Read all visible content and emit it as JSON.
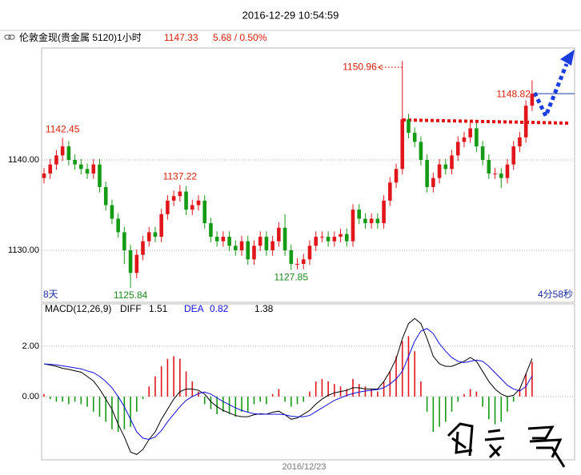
{
  "timestamp": "2016-12-29 10:54:59",
  "header": {
    "title": "伦敦金现(贵金属 5120)1小时",
    "last": 1147.33,
    "change": "5.68 / 0.50%"
  },
  "chart_data": [
    {
      "type": "candlestick",
      "open": [
        1138,
        1138.5,
        1139.5,
        1140.5,
        1141.5,
        1140,
        1139.5,
        1139,
        1138.5,
        1139.5,
        1137,
        1135,
        1133.5,
        1132,
        1130,
        1127.5,
        1129.5,
        1131,
        1132,
        1131.5,
        1134,
        1135.5,
        1136,
        1136.5,
        1134.5,
        1135,
        1135.5,
        1133,
        1131.5,
        1131,
        1131.5,
        1130.5,
        1130,
        1131,
        1129,
        1130.5,
        1131.5,
        1130,
        1131,
        1132.5,
        1130,
        1128.5,
        1128.5,
        1129,
        1130.5,
        1131.5,
        1131.5,
        1131,
        1131.5,
        1131.8,
        1131,
        1134.5,
        1133.5,
        1133,
        1133.5,
        1133,
        1135.5,
        1137.5,
        1139,
        1144.5,
        1143,
        1142,
        1140,
        1137,
        1138,
        1139.5,
        1139,
        1140.5,
        1142,
        1142.5,
        1143.5,
        1141.5,
        1140,
        1138.5,
        1138.5,
        1138,
        1139.5,
        1141.5,
        1142.5,
        1146
      ],
      "high": [
        1139.1,
        1140.1,
        1141.1,
        1142.45,
        1142.1,
        1140.6,
        1140.1,
        1139.6,
        1140.1,
        1140.1,
        1137.6,
        1135.6,
        1134.1,
        1132.6,
        1130.6,
        1130.1,
        1131.6,
        1132.6,
        1132.6,
        1134.6,
        1136.1,
        1136.6,
        1137.22,
        1137.1,
        1135.6,
        1136.1,
        1136.1,
        1133.6,
        1132.1,
        1132.1,
        1132.1,
        1131.1,
        1131.6,
        1131.6,
        1131.1,
        1132.1,
        1132.1,
        1131.6,
        1133.1,
        1134.0,
        1130.6,
        1129.1,
        1129.6,
        1131.1,
        1132.1,
        1132.1,
        1132.1,
        1132.1,
        1132.4,
        1132.4,
        1135.1,
        1135.1,
        1134.1,
        1134.1,
        1134.1,
        1136.1,
        1138.1,
        1139.6,
        1150.96,
        1145.1,
        1143.6,
        1142.6,
        1140.6,
        1138.6,
        1140.1,
        1140.1,
        1141.1,
        1142.6,
        1143.1,
        1144.1,
        1144.1,
        1142.1,
        1140.6,
        1139.1,
        1139.1,
        1140.1,
        1142.1,
        1143.1,
        1146.6,
        1148.82
      ],
      "low": [
        1137.4,
        1137.9,
        1138.9,
        1139.9,
        1139.4,
        1138.9,
        1138.4,
        1137.9,
        1137.9,
        1136.4,
        1134.4,
        1132.9,
        1131.4,
        1128.5,
        1125.84,
        1126.9,
        1128.9,
        1130.4,
        1130.9,
        1130.9,
        1133.4,
        1134.9,
        1135.4,
        1133.9,
        1133.9,
        1134.4,
        1132.4,
        1130.9,
        1130.4,
        1130.4,
        1129.9,
        1129.4,
        1129.4,
        1128.4,
        1128.4,
        1129.9,
        1129.4,
        1129.4,
        1130.4,
        1129.4,
        1127.85,
        1127.9,
        1127.9,
        1128.4,
        1129.9,
        1130.9,
        1130.4,
        1130.4,
        1130.9,
        1130.4,
        1130.4,
        1132.9,
        1132.4,
        1132.4,
        1132.4,
        1132.4,
        1134.9,
        1136.9,
        1138.4,
        1142.4,
        1141.4,
        1139.4,
        1136.4,
        1136.4,
        1137.4,
        1138.4,
        1138.4,
        1139.9,
        1141.4,
        1141.9,
        1140.9,
        1139.4,
        1137.9,
        1137.9,
        1136.9,
        1137.4,
        1138.9,
        1140.9,
        1141.9,
        1145.4
      ],
      "close": [
        1138.5,
        1139.5,
        1140.5,
        1141.5,
        1140,
        1139.5,
        1139,
        1138.5,
        1139.5,
        1137,
        1135,
        1133.5,
        1132,
        1130,
        1127.5,
        1129.5,
        1131,
        1132,
        1131.5,
        1134,
        1135.5,
        1136,
        1136.5,
        1134.5,
        1135,
        1135.5,
        1133,
        1131.5,
        1131,
        1131.5,
        1130.5,
        1130,
        1131,
        1129,
        1130.5,
        1131.5,
        1130,
        1131,
        1132.5,
        1130,
        1128.5,
        1128.5,
        1129,
        1130.5,
        1131.5,
        1131.5,
        1131,
        1131.5,
        1131.8,
        1131,
        1134.5,
        1133.5,
        1133,
        1133.5,
        1133,
        1135.5,
        1137.5,
        1139,
        1144.5,
        1143,
        1142,
        1140,
        1137,
        1138,
        1139.5,
        1139,
        1140.5,
        1142,
        1142.5,
        1143.5,
        1141.5,
        1140,
        1138.5,
        1138.5,
        1138,
        1139.5,
        1141.5,
        1142.5,
        1146,
        1147.33
      ],
      "up_color": "#e0161b",
      "down_color": "#159a15",
      "ylim": [
        1124.25,
        1152.39
      ],
      "yticks": [
        {
          "value": 1130,
          "label": "1130.00"
        },
        {
          "value": 1140,
          "label": "1140.00"
        }
      ],
      "grid": true,
      "span_label": "8天",
      "countdown": "4分58秒"
    },
    {
      "type": "macd",
      "title": "MACD(12,26,9)",
      "series": [
        {
          "name": "DIFF",
          "color": "#000000",
          "values": [
            1.3,
            1.25,
            1.2,
            1.12,
            1.08,
            1.02,
            0.97,
            0.8,
            0.62,
            0.3,
            -0.1,
            -0.5,
            -1.1,
            -1.6,
            -2.2,
            -2.3,
            -2.1,
            -1.7,
            -1.4,
            -0.9,
            -0.5,
            -0.1,
            0.2,
            0.3,
            0.3,
            0.25,
            0.1,
            -0.2,
            -0.4,
            -0.55,
            -0.65,
            -0.75,
            -0.8,
            -0.8,
            -0.72,
            -0.68,
            -0.7,
            -0.62,
            -0.58,
            -0.72,
            -0.9,
            -0.85,
            -0.7,
            -0.55,
            -0.3,
            -0.1,
            0.05,
            0.15,
            0.2,
            0.25,
            0.35,
            0.35,
            0.3,
            0.3,
            0.3,
            0.6,
            1.0,
            1.5,
            2.3,
            2.9,
            3.1,
            2.9,
            2.3,
            1.6,
            1.3,
            1.2,
            1.2,
            1.3,
            1.4,
            1.55,
            1.4,
            1.0,
            0.6,
            0.3,
            0.1,
            0.0,
            0.05,
            0.3,
            0.9,
            1.51
          ]
        },
        {
          "name": "DEA",
          "color": "#1010e0",
          "values": [
            1.3,
            1.28,
            1.26,
            1.22,
            1.18,
            1.14,
            1.1,
            1.02,
            0.95,
            0.8,
            0.6,
            0.35,
            0.0,
            -0.4,
            -0.9,
            -1.4,
            -1.65,
            -1.7,
            -1.6,
            -1.35,
            -1.0,
            -0.7,
            -0.4,
            -0.15,
            0.0,
            0.12,
            0.18,
            0.1,
            -0.05,
            -0.2,
            -0.32,
            -0.45,
            -0.55,
            -0.62,
            -0.68,
            -0.7,
            -0.7,
            -0.7,
            -0.7,
            -0.72,
            -0.78,
            -0.8,
            -0.8,
            -0.75,
            -0.6,
            -0.45,
            -0.3,
            -0.15,
            -0.05,
            0.05,
            0.12,
            0.18,
            0.22,
            0.25,
            0.28,
            0.35,
            0.5,
            0.7,
            1.0,
            1.6,
            2.2,
            2.6,
            2.7,
            2.5,
            2.1,
            1.8,
            1.55,
            1.4,
            1.35,
            1.4,
            1.45,
            1.4,
            1.2,
            0.95,
            0.7,
            0.45,
            0.3,
            0.22,
            0.4,
            0.82
          ]
        }
      ],
      "histogram": [
        0.1,
        -0.1,
        -0.2,
        -0.2,
        -0.3,
        -0.2,
        -0.3,
        -0.4,
        -0.6,
        -0.8,
        -1.0,
        -1.3,
        -1.4,
        -1.3,
        -1.2,
        -0.6,
        -0.1,
        0.4,
        0.8,
        1.2,
        1.5,
        1.6,
        1.5,
        1.0,
        0.6,
        0.2,
        -0.3,
        -0.5,
        -0.7,
        -0.6,
        -0.7,
        -0.8,
        -0.6,
        -0.6,
        -0.3,
        -0.2,
        -0.3,
        0.1,
        0.3,
        -0.2,
        -0.4,
        -0.3,
        -0.2,
        0.2,
        0.6,
        0.7,
        0.6,
        0.5,
        0.4,
        0.3,
        0.7,
        0.5,
        0.4,
        0.3,
        0.2,
        0.6,
        1.0,
        1.6,
        2.2,
        2.4,
        1.8,
        0.6,
        -0.6,
        -1.4,
        -1.2,
        -1.0,
        -0.6,
        -0.2,
        0.1,
        0.3,
        0.2,
        -0.4,
        -0.9,
        -1.1,
        -1.0,
        -0.6,
        -0.2,
        0.3,
        0.9,
        1.38
      ],
      "up_color": "#e0161b",
      "down_color": "#159a15",
      "ylim": [
        -2.51,
        3.68
      ],
      "yticks": [
        {
          "value": 0,
          "label": "0.00"
        },
        {
          "value": 2,
          "label": "2.00"
        }
      ],
      "grid": true,
      "x_label": "2016/12/23"
    }
  ]
}
